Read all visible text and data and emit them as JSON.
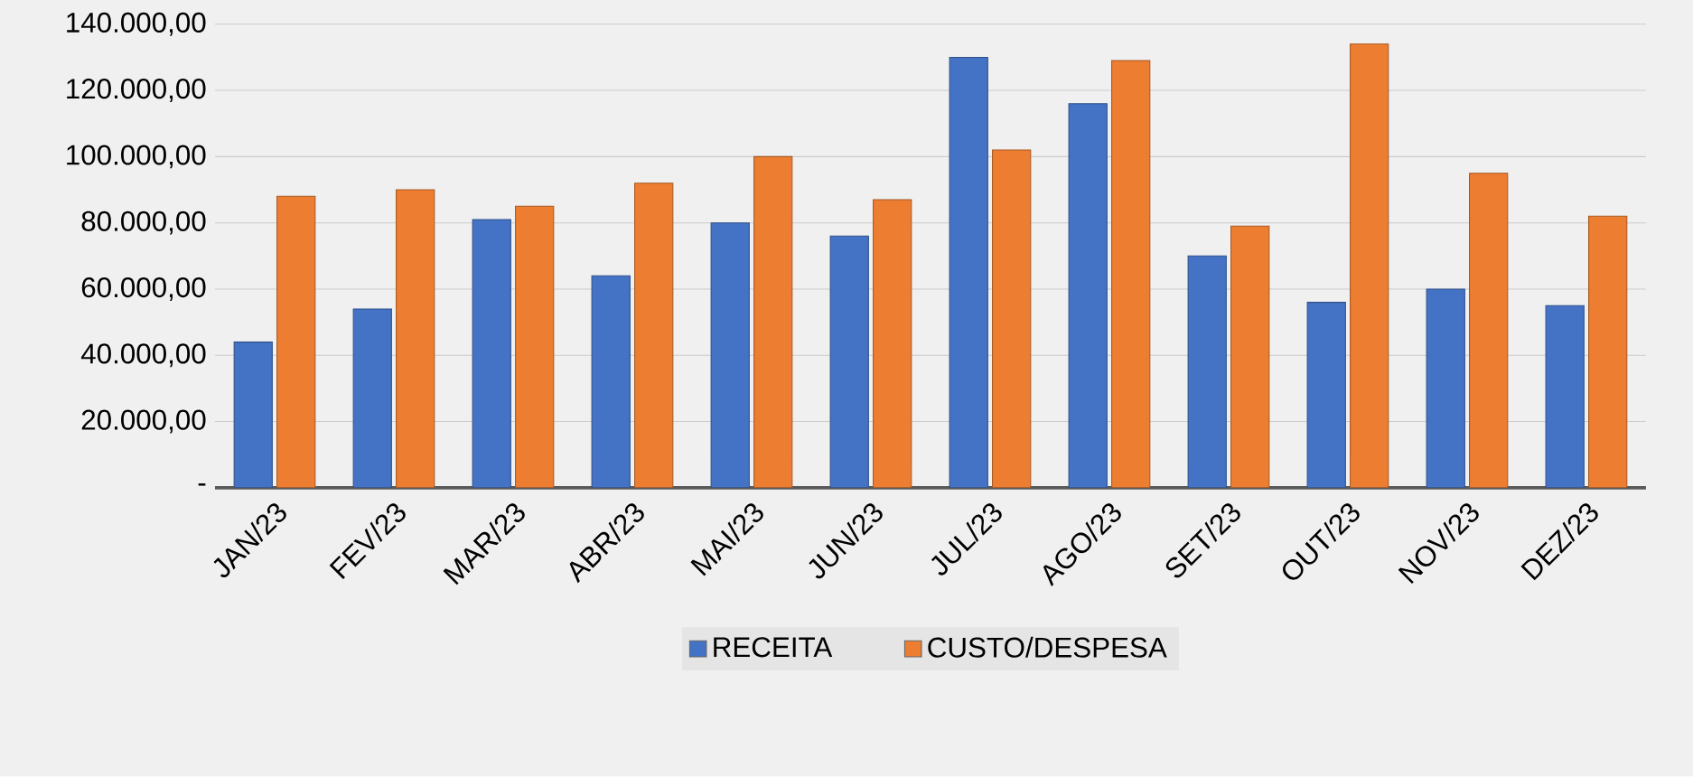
{
  "chart_data": {
    "type": "bar",
    "categories": [
      "JAN/23",
      "FEV/23",
      "MAR/23",
      "ABR/23",
      "MAI/23",
      "JUN/23",
      "JUL/23",
      "AGO/23",
      "SET/23",
      "OUT/23",
      "NOV/23",
      "DEZ/23"
    ],
    "series": [
      {
        "name": "RECEITA",
        "color": "#4472c4",
        "values": [
          44000,
          54000,
          81000,
          64000,
          80000,
          76000,
          130000,
          116000,
          70000,
          56000,
          60000,
          55000
        ]
      },
      {
        "name": "CUSTO/DESPESA",
        "color": "#ed7d31",
        "values": [
          88000,
          90000,
          85000,
          92000,
          100000,
          87000,
          102000,
          129000,
          79000,
          134000,
          95000,
          82000
        ]
      }
    ],
    "ylim": [
      0,
      140000
    ],
    "yticks": [
      {
        "value": 0,
        "label": "-"
      },
      {
        "value": 20000,
        "label": "20.000,00"
      },
      {
        "value": 40000,
        "label": "40.000,00"
      },
      {
        "value": 60000,
        "label": "60.000,00"
      },
      {
        "value": 80000,
        "label": "80.000,00"
      },
      {
        "value": 100000,
        "label": "100.000,00"
      },
      {
        "value": 120000,
        "label": "120.000,00"
      },
      {
        "value": 140000,
        "label": "140.000,00"
      }
    ],
    "grid": "y",
    "legend": "bottom"
  }
}
